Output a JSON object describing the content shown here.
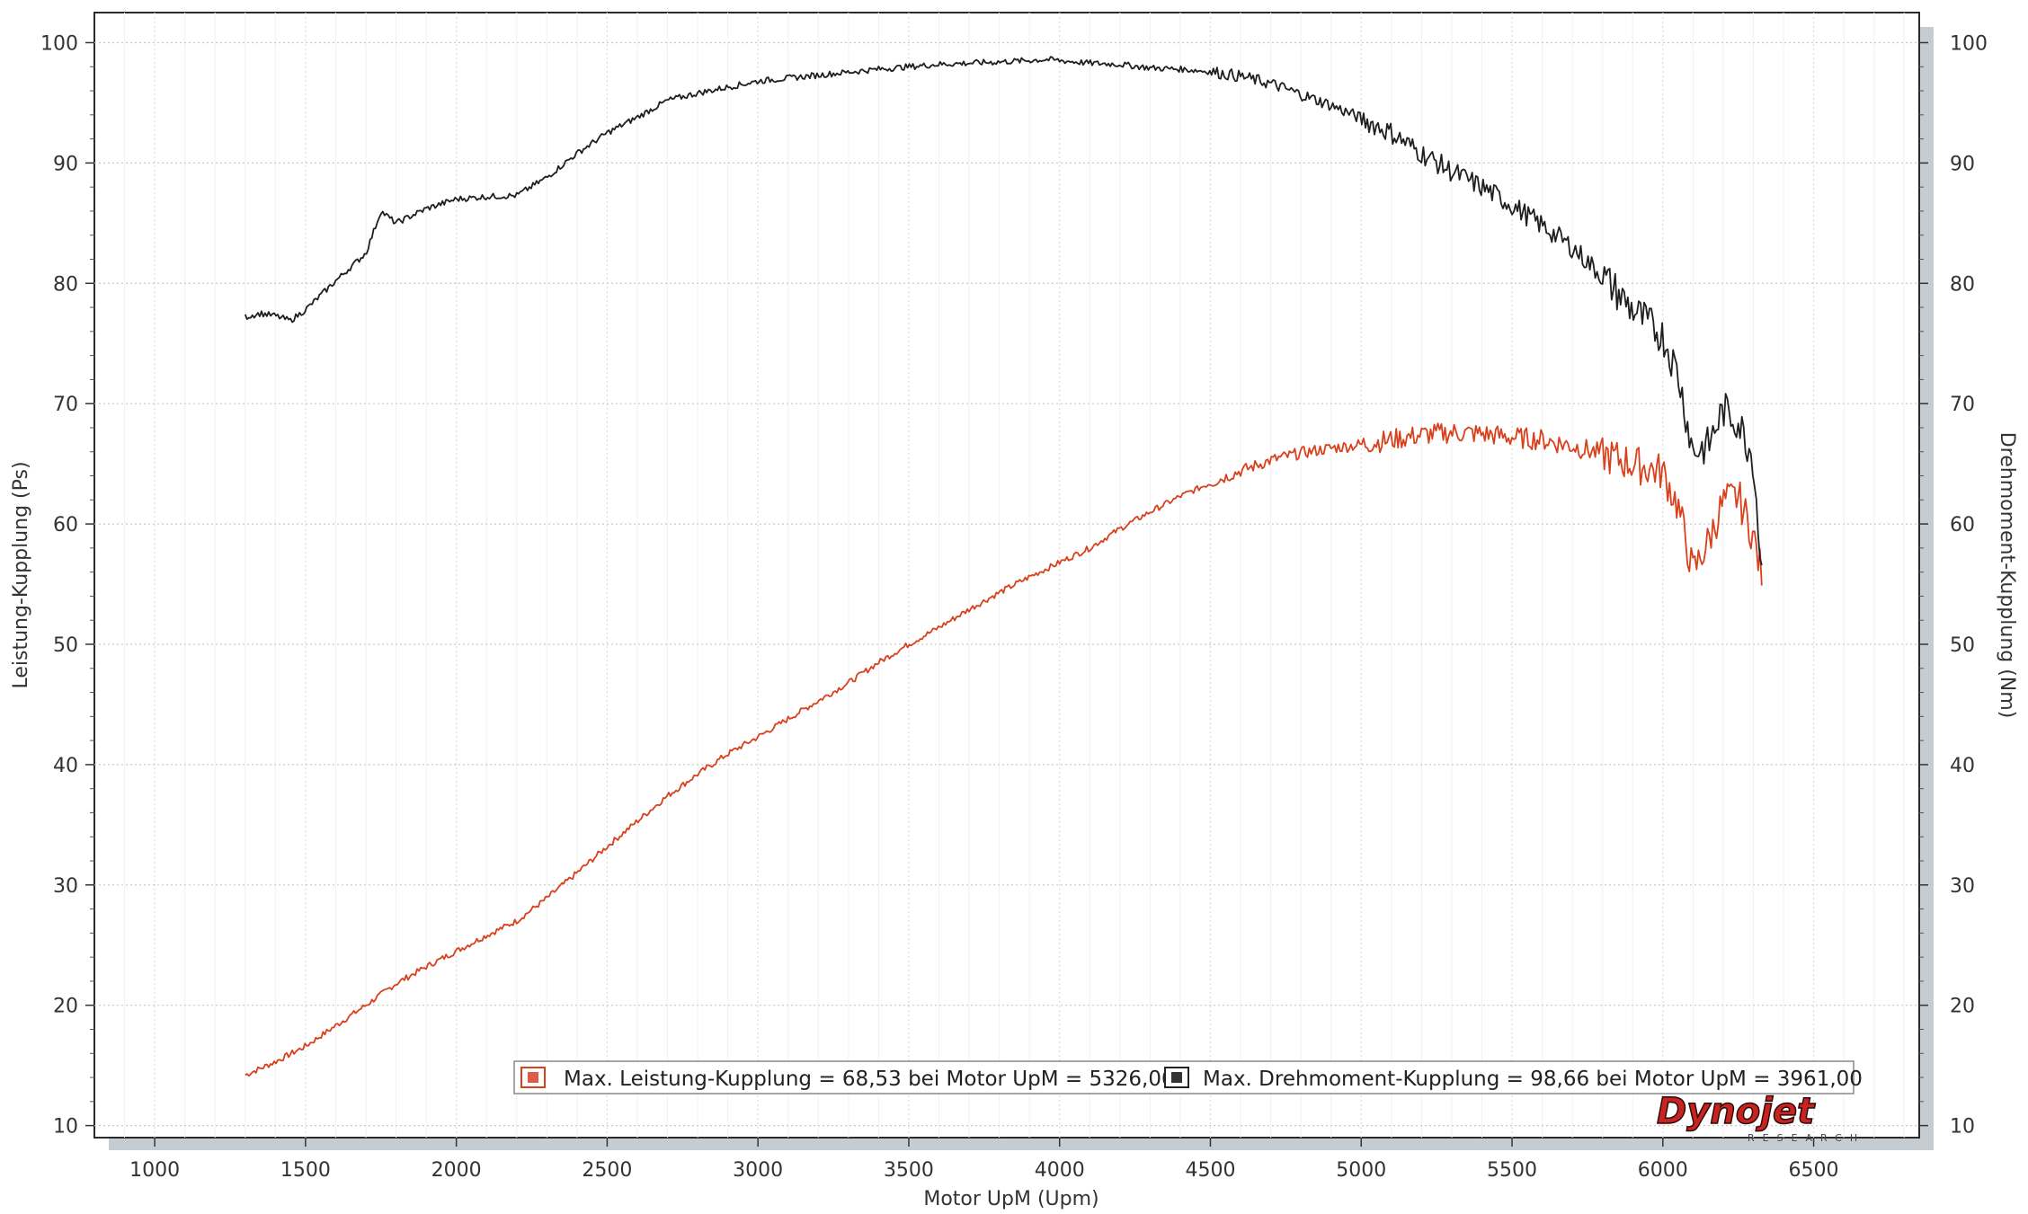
{
  "chart_data": {
    "type": "line",
    "xlabel": "Motor UpM (Upm)",
    "ylabel_left": "Leistung-Kupplung (Ps)",
    "ylabel_right": "Drehmoment-Kupplung (Nm)",
    "xlim": [
      800,
      6850
    ],
    "ylim": [
      9,
      102.5
    ],
    "x_ticks": [
      1000,
      1500,
      2000,
      2500,
      3000,
      3500,
      4000,
      4500,
      5000,
      5500,
      6000,
      6500
    ],
    "y_ticks": [
      10,
      20,
      30,
      40,
      50,
      60,
      70,
      80,
      90,
      100
    ],
    "grid": true,
    "legend_position": "bottom-right",
    "legend": [
      "Max. Leistung-Kupplung = 68,53 bei Motor UpM = 5326,00",
      "Max. Drehmoment-Kupplung = 98,66 bei Motor UpM = 3961,00"
    ],
    "series": [
      {
        "name": "Leistung-Kupplung",
        "color": "#d9401c",
        "x": [
          1300,
          1400,
          1500,
          1600,
          1700,
          1800,
          1900,
          2000,
          2100,
          2200,
          2300,
          2400,
          2500,
          2600,
          2700,
          2800,
          2900,
          3000,
          3100,
          3200,
          3300,
          3400,
          3500,
          3600,
          3700,
          3800,
          3900,
          4000,
          4100,
          4200,
          4300,
          4400,
          4500,
          4600,
          4700,
          4800,
          4900,
          5000,
          5100,
          5200,
          5300,
          5400,
          5500,
          5600,
          5700,
          5800,
          5900,
          6000,
          6050,
          6100,
          6150,
          6200,
          6250,
          6300,
          6330
        ],
        "values": [
          14.2,
          15.3,
          16.6,
          18.3,
          20.0,
          21.8,
          23.2,
          24.5,
          25.8,
          27.0,
          28.9,
          31.0,
          33.2,
          35.3,
          37.4,
          39.2,
          40.9,
          42.3,
          43.8,
          45.3,
          46.8,
          48.5,
          50.0,
          51.4,
          52.9,
          54.3,
          55.6,
          56.8,
          58.0,
          59.6,
          61.0,
          62.3,
          63.4,
          64.4,
          65.3,
          65.9,
          66.3,
          66.6,
          67.0,
          67.4,
          67.6,
          67.5,
          67.2,
          67.0,
          66.5,
          65.8,
          65.0,
          64.3,
          61.5,
          56.0,
          58.5,
          61.8,
          62.3,
          59.0,
          55.5
        ]
      },
      {
        "name": "Drehmoment-Kupplung",
        "color": "#1f1f1f",
        "x": [
          1300,
          1350,
          1400,
          1450,
          1500,
          1600,
          1700,
          1750,
          1800,
          1850,
          1900,
          2000,
          2100,
          2200,
          2300,
          2400,
          2500,
          2600,
          2700,
          2800,
          2900,
          3000,
          3200,
          3400,
          3600,
          3800,
          3961,
          4100,
          4200,
          4300,
          4400,
          4500,
          4600,
          4700,
          4800,
          4900,
          5000,
          5100,
          5200,
          5300,
          5400,
          5500,
          5600,
          5700,
          5800,
          5900,
          6000,
          6050,
          6100,
          6150,
          6200,
          6250,
          6300,
          6330
        ],
        "values": [
          77.2,
          77.5,
          77.3,
          76.9,
          77.8,
          80.2,
          82.5,
          86.0,
          85.0,
          85.6,
          86.2,
          87.0,
          87.2,
          87.3,
          88.8,
          90.8,
          92.5,
          93.8,
          95.2,
          95.8,
          96.3,
          96.8,
          97.3,
          97.8,
          98.2,
          98.4,
          98.6,
          98.3,
          98.2,
          97.9,
          97.8,
          97.6,
          97.2,
          96.6,
          95.7,
          94.8,
          93.7,
          92.5,
          90.8,
          89.3,
          88.0,
          86.5,
          84.8,
          83.0,
          80.6,
          77.8,
          75.6,
          72.5,
          66.0,
          66.5,
          69.5,
          68.5,
          65.5,
          55.2
        ]
      }
    ]
  },
  "logo": {
    "brand": "Dynojet",
    "sub": "RESEARCH"
  }
}
